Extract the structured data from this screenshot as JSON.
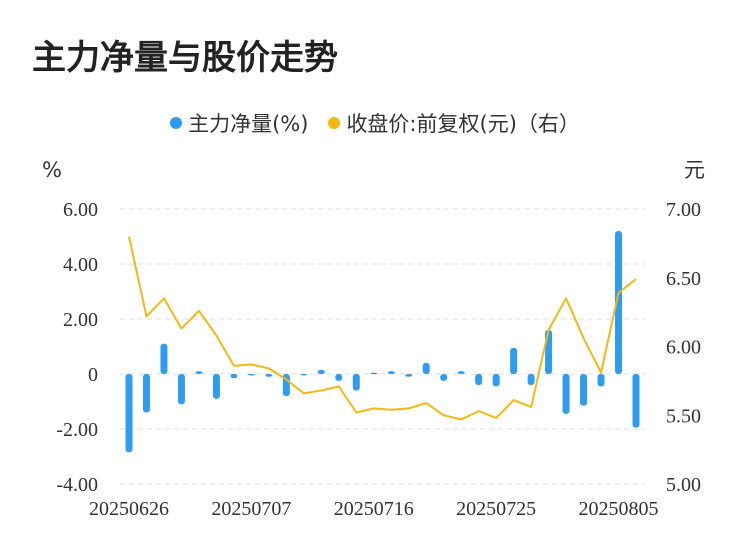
{
  "title": "主力净量与股价走势",
  "legend": {
    "series1": "主力净量(%)",
    "series2": "收盘价:前复权(元)（右）"
  },
  "colors": {
    "bar": "#2e9cf0",
    "line": "#f4b813",
    "grid": "#dddddd",
    "text": "#333333"
  },
  "chart_data": {
    "type": "bar+line",
    "left_axis": {
      "unit": "%",
      "ylim": [
        -4,
        6
      ],
      "ticks": [
        -4,
        -2,
        0,
        2,
        4,
        6
      ],
      "tick_labels": [
        "-4.00",
        "-2.00",
        "0",
        "2.00",
        "4.00",
        "6.00"
      ]
    },
    "right_axis": {
      "unit": "元",
      "ylim": [
        5.0,
        7.0
      ],
      "ticks": [
        5.0,
        5.5,
        6.0,
        6.5,
        7.0
      ],
      "tick_labels": [
        "5.00",
        "5.50",
        "6.00",
        "6.50",
        "7.00"
      ]
    },
    "x_tick_labels": [
      "20250626",
      "20250707",
      "20250716",
      "20250725",
      "20250805"
    ],
    "x_tick_indices": [
      0,
      7,
      14,
      21,
      28
    ],
    "series": [
      {
        "name": "主力净量(%)",
        "type": "bar",
        "axis": "left",
        "values": [
          -2.85,
          -1.4,
          1.1,
          -1.1,
          0.1,
          -0.9,
          -0.15,
          -0.05,
          -0.1,
          -0.8,
          -0.05,
          0.15,
          -0.25,
          -0.6,
          0.05,
          0.1,
          -0.1,
          0.4,
          -0.25,
          0.1,
          -0.4,
          -0.45,
          0.95,
          -0.4,
          1.6,
          -1.45,
          -1.15,
          -0.45,
          5.2,
          -1.95
        ]
      },
      {
        "name": "收盘价:前复权(元)（右）",
        "type": "line",
        "axis": "right",
        "values": [
          6.8,
          6.22,
          6.35,
          6.13,
          6.26,
          6.08,
          5.86,
          5.87,
          5.84,
          5.76,
          5.66,
          5.68,
          5.71,
          5.52,
          5.55,
          5.54,
          5.55,
          5.59,
          5.5,
          5.47,
          5.53,
          5.48,
          5.61,
          5.56,
          6.12,
          6.35,
          6.06,
          5.81,
          6.39,
          6.49
        ]
      }
    ]
  }
}
